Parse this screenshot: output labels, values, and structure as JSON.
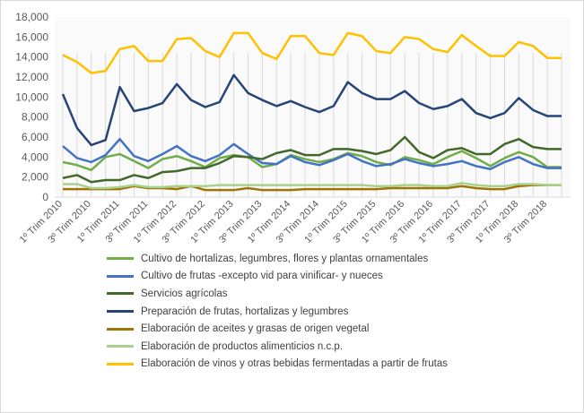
{
  "chart_data": {
    "type": "line",
    "ylim": [
      0,
      18000
    ],
    "yticks": [
      "0",
      "2,000",
      "4,000",
      "6,000",
      "8,000",
      "10,000",
      "12,000",
      "14,000",
      "16,000",
      "18,000"
    ],
    "grid": "vertical",
    "legend_placement": "bottom",
    "categories": [
      "1º Trim 2010",
      "2º Trim 2010",
      "3º Trim 2010",
      "4º Trim 2010",
      "1º Trim 2011",
      "2º Trim 2011",
      "3º Trim 2011",
      "4º Trim 2011",
      "1º Trim 2012",
      "2º Trim 2012",
      "3º Trim 2012",
      "4º Trim 2012",
      "1º Trim 2013",
      "2º Trim 2013",
      "3º Trim 2013",
      "4º Trim 2013",
      "1º Trim 2014",
      "2º Trim 2014",
      "3º Trim 2014",
      "4º Trim 2014",
      "1º Trim 2015",
      "2º Trim 2015",
      "3º Trim 2015",
      "4º Trim 2015",
      "1º Trim 2016",
      "2º Trim 2016",
      "3º Trim 2016",
      "4º Trim 2016",
      "1º Trim 2017",
      "2º Trim 2017",
      "3º Trim 2017",
      "4º Trim 2017",
      "1º Trim 2018",
      "2º Trim 2018",
      "3º Trim 2018",
      "4º Trim 2018"
    ],
    "xtick_labels": [
      "1º Trim 2010",
      "3º Trim 2010",
      "1º Trim 2011",
      "3º Trim 2011",
      "1º Trim 2012",
      "3º Trim 2012",
      "1º Trim 2013",
      "3º Trim 2013",
      "1º Trim 2014",
      "3º Trim 2014",
      "1º Trim 2015",
      "3º Trim 2015",
      "1º Trim 2016",
      "3º Trim 2016",
      "1º Trim 2017",
      "3º Trim 2017",
      "1º Trim 2018",
      "3º Trim 2018"
    ],
    "series": [
      {
        "name": "Cultivo de hortalizas, legumbres, flores y plantas ornamentales",
        "color": "#70ad47",
        "values": [
          3500,
          3200,
          2700,
          4000,
          4300,
          3600,
          2900,
          3800,
          4100,
          3600,
          3000,
          3900,
          4200,
          4000,
          3000,
          3300,
          4200,
          3800,
          3500,
          3800,
          4400,
          4100,
          3500,
          3200,
          4000,
          3700,
          3300,
          4000,
          4600,
          3900,
          3100,
          3900,
          4500,
          4000,
          3000,
          3000
        ]
      },
      {
        "name": "Cultivo de frutas  -excepto vid para vinificar- y nueces",
        "color": "#4472c4",
        "values": [
          5100,
          3900,
          3500,
          4200,
          5800,
          4100,
          3600,
          4300,
          5100,
          4100,
          3600,
          4200,
          5300,
          4300,
          3400,
          3300,
          4100,
          3500,
          3200,
          3700,
          4300,
          3600,
          3100,
          3300,
          3800,
          3400,
          3100,
          3300,
          3600,
          3100,
          2800,
          3500,
          4000,
          3300,
          2900,
          2900
        ]
      },
      {
        "name": "Servicios agrícolas",
        "color": "#43682b",
        "values": [
          1900,
          2200,
          1500,
          1700,
          1700,
          2200,
          1900,
          2500,
          2600,
          2900,
          2900,
          3400,
          4100,
          4000,
          3800,
          4400,
          4700,
          4200,
          4200,
          4800,
          4800,
          4600,
          4300,
          4700,
          6000,
          4500,
          3900,
          4700,
          4900,
          4300,
          4300,
          5300,
          5800,
          5000,
          4800,
          4800
        ]
      },
      {
        "name": "Preparación de frutas, hortalizas y legumbres",
        "color": "#264478",
        "values": [
          10300,
          6900,
          5200,
          5700,
          11000,
          8600,
          8900,
          9400,
          11300,
          9700,
          9000,
          9500,
          12200,
          10400,
          9700,
          9100,
          9600,
          9000,
          8500,
          9100,
          11500,
          10400,
          9800,
          9800,
          10600,
          9400,
          8800,
          9100,
          9800,
          8400,
          7900,
          8400,
          9900,
          8700,
          8100,
          8100
        ]
      },
      {
        "name": "Elaboración de aceites y grasas de origen vegetal",
        "color": "#9e7409",
        "values": [
          800,
          800,
          800,
          800,
          800,
          1100,
          900,
          900,
          800,
          1100,
          700,
          700,
          700,
          900,
          700,
          700,
          700,
          800,
          800,
          800,
          800,
          800,
          800,
          900,
          900,
          900,
          900,
          900,
          1100,
          900,
          800,
          800,
          1100,
          1200,
          1200,
          1200
        ]
      },
      {
        "name": "Elaboración de productos alimenticios n.c.p.",
        "color": "#a9d18e",
        "values": [
          1300,
          1300,
          900,
          900,
          1000,
          1200,
          1000,
          1000,
          1100,
          1100,
          1100,
          1200,
          1200,
          1200,
          1200,
          1200,
          1200,
          1200,
          1200,
          1200,
          1200,
          1200,
          1100,
          1100,
          1200,
          1200,
          1100,
          1100,
          1400,
          1200,
          1100,
          1100,
          1300,
          1300,
          1200,
          1200
        ]
      },
      {
        "name": "Elaboración de vinos y otras bebidas fermentadas a partir de frutas",
        "color": "#ffc000",
        "values": [
          14200,
          13500,
          12400,
          12600,
          14800,
          15100,
          13600,
          13600,
          15800,
          15900,
          14600,
          14000,
          16400,
          16400,
          14400,
          13800,
          16100,
          16100,
          14400,
          14200,
          16400,
          16100,
          14600,
          14400,
          16000,
          15800,
          14800,
          14500,
          16200,
          15100,
          14100,
          14100,
          15500,
          15100,
          13900,
          13900
        ]
      }
    ]
  }
}
